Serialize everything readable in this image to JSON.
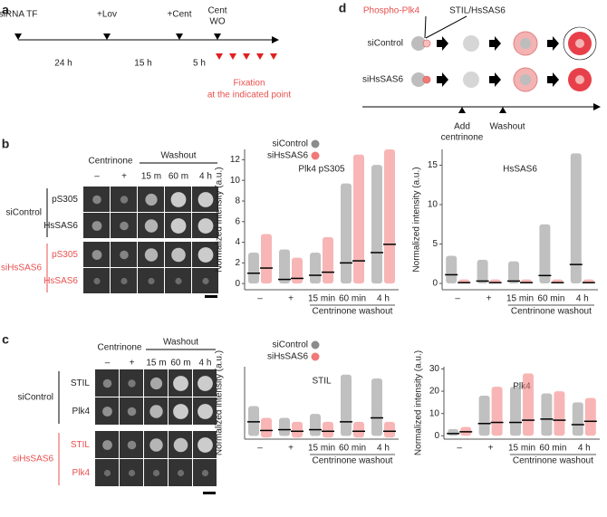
{
  "panels": {
    "labels": [
      "a",
      "b",
      "c",
      "d"
    ],
    "a": {
      "steps": [
        "siRNA TF",
        "+Lov",
        "+Cent",
        "Cent",
        "WO"
      ],
      "durations": [
        "24 h",
        "15 h",
        "5 h"
      ],
      "fixation": [
        "Fixation",
        "at the indicated point"
      ]
    },
    "b": {
      "treatment": "Centrinone",
      "washout": "Washout",
      "columns": [
        "–",
        "+",
        "15 m",
        "60 m",
        "4 h"
      ],
      "groups": [
        "siControl",
        "siHsSAS6"
      ],
      "rows": [
        "pS305",
        "HsSAS6",
        "pS305",
        "HsSAS6"
      ]
    },
    "c": {
      "treatment": "Centrinone",
      "washout": "Washout",
      "columns": [
        "–",
        "+",
        "15 m",
        "60 m",
        "4 h"
      ],
      "groups": [
        "siControl",
        "siHsSAS6"
      ],
      "rows": [
        "STIL",
        "Plk4",
        "STIL",
        "Plk4"
      ]
    },
    "d": {
      "markers": [
        "Phospho-Plk4",
        "STIL/HsSAS6"
      ],
      "groups": [
        "siControl",
        "siHsSAS6"
      ],
      "events": [
        "Add",
        "centrinone",
        "Washout"
      ]
    }
  },
  "chart_data": [
    {
      "type": "strip",
      "title": "Plk4 pS305",
      "ylabel": "Normalized intensity (a.u.)",
      "xlabel": "Centrinone washout",
      "legend": true,
      "categories": [
        "–",
        "+",
        "15 min",
        "60 min",
        "4 h"
      ],
      "ylim": [
        -0.6,
        13
      ],
      "yticks": [
        0,
        2,
        4,
        6,
        8,
        10,
        12
      ],
      "series": [
        {
          "name": "siControl",
          "color": "#8c8c8c",
          "values": [
            1,
            0.4,
            0.8,
            2,
            3
          ],
          "min": [
            0,
            0,
            0,
            0,
            0
          ],
          "max": [
            3,
            3.3,
            3,
            9.7,
            11.5
          ]
        },
        {
          "name": "siHsSAS6",
          "color": "#f07a78",
          "values": [
            1.5,
            0.5,
            1.1,
            2.2,
            3.8
          ],
          "min": [
            0,
            0,
            0,
            0,
            0
          ],
          "max": [
            4.8,
            2.5,
            4.5,
            12.5,
            13
          ]
        }
      ]
    },
    {
      "type": "strip",
      "title": "HsSAS6",
      "ylabel": "Normalized intensity (a.u.)",
      "xlabel": "Centrinone washout",
      "legend": false,
      "categories": [
        "–",
        "+",
        "15 min",
        "60 min",
        "4 h"
      ],
      "ylim": [
        -0.8,
        17
      ],
      "yticks": [
        0,
        5,
        10,
        15
      ],
      "series": [
        {
          "name": "siControl",
          "color": "#8c8c8c",
          "values": [
            1.1,
            0.3,
            0.3,
            1,
            2.4
          ],
          "min": [
            0,
            0,
            0,
            0,
            0
          ],
          "max": [
            3.5,
            3,
            2.8,
            7.5,
            16.5
          ]
        },
        {
          "name": "siHsSAS6",
          "color": "#f07a78",
          "values": [
            0.1,
            0.1,
            0.1,
            0.1,
            0.1
          ],
          "min": [
            0,
            0,
            0,
            0,
            0
          ],
          "max": [
            0.5,
            0.5,
            0.5,
            0.5,
            0.5
          ]
        }
      ]
    },
    {
      "type": "strip",
      "title": "STIL",
      "ylabel": "Normalized intensity (a.u.)",
      "xlabel": "Centrinone washout",
      "legend": true,
      "categories": [
        "–",
        "+",
        "15 min",
        "60 min",
        "4 h"
      ],
      "ylim": [
        -1.2,
        8
      ],
      "series": [
        {
          "name": "siControl",
          "color": "#8c8c8c",
          "values": [
            1,
            0,
            0,
            1,
            1.5
          ],
          "min": [
            -0.8,
            -0.8,
            -0.8,
            -0.8,
            -0.8
          ],
          "max": [
            3,
            1.5,
            2,
            7,
            6.5
          ]
        },
        {
          "name": "siHsSAS6",
          "color": "#f07a78",
          "values": [
            -0.1,
            -0.2,
            -0.2,
            -0.2,
            -0.2
          ],
          "min": [
            -1,
            -1,
            -1,
            -1,
            -1
          ],
          "max": [
            1.5,
            1,
            1,
            1,
            1
          ]
        }
      ]
    },
    {
      "type": "strip",
      "title": "Plk4",
      "ylabel": "Normalized intensity (a.u.)",
      "xlabel": "Centrinone washout",
      "legend": false,
      "categories": [
        "–",
        "+",
        "15 min",
        "60 min",
        "4 h"
      ],
      "ylim": [
        -1.5,
        31
      ],
      "yticks": [
        0,
        10,
        20,
        30
      ],
      "series": [
        {
          "name": "siControl",
          "color": "#8c8c8c",
          "values": [
            1,
            5.5,
            6,
            7.5,
            5
          ],
          "min": [
            0,
            0,
            0,
            0,
            0
          ],
          "max": [
            3,
            18,
            22,
            19,
            15
          ]
        },
        {
          "name": "siHsSAS6",
          "color": "#f07a78",
          "values": [
            1.8,
            6,
            7,
            7,
            6.5
          ],
          "min": [
            0,
            0,
            0,
            0,
            0
          ],
          "max": [
            4,
            22,
            28,
            20,
            17
          ]
        }
      ]
    }
  ]
}
